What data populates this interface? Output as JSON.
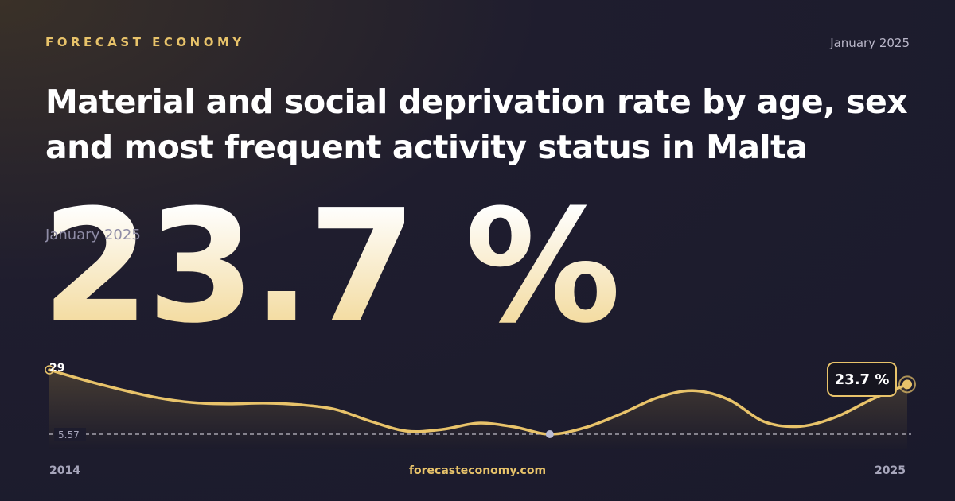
{
  "header": {
    "brand": "FORECAST ECONOMY",
    "date": "January 2025"
  },
  "title": "Material and social deprivation rate by age, sex and most frequent activity status in Malta",
  "headline": {
    "value_label": "23.7 %",
    "date": "January 2025"
  },
  "chart_data": {
    "type": "line",
    "color": "#e8c36a",
    "values": [
      29,
      25.2,
      21.8,
      18.9,
      17.1,
      16.6,
      16.9,
      16.3,
      14.6,
      10.2,
      6.7,
      7.3,
      9.6,
      8.2,
      5.57,
      8.0,
      13,
      18.8,
      21.4,
      18.2,
      10.1,
      8.4,
      11.8,
      18.2,
      23.7
    ],
    "ylim": [
      5.57,
      29
    ],
    "xlim": [
      2014,
      2025
    ],
    "xticks": [
      2014,
      2025
    ]
  },
  "footer": {
    "site": "forecasteconomy.com"
  }
}
